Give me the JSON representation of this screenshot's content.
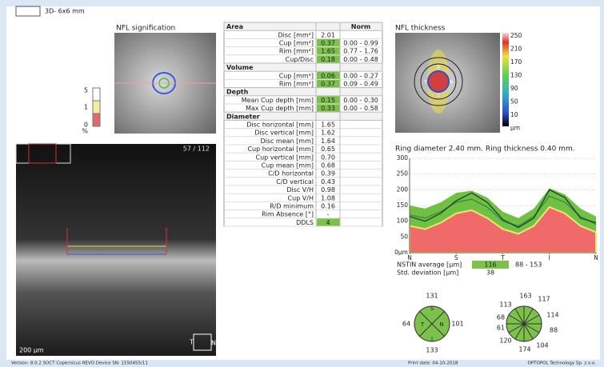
{
  "header": {
    "scan": "3D- 6x6 mm"
  },
  "fundus": {
    "title": "NFL signification",
    "scale_labels": [
      "5",
      "1",
      "0",
      "%"
    ]
  },
  "bscan": {
    "frame": "57 / 112",
    "scale": "200 µm",
    "left": "T",
    "right": "N"
  },
  "table": {
    "norm_header": "Norm",
    "sections": [
      {
        "title": "Area",
        "highlighted_rows": [
          1,
          2,
          3
        ],
        "rows": [
          [
            "Disc [mm²]",
            "2.01"
          ],
          [
            "Cup [mm²]",
            "0.37",
            "0.00 - 0.99"
          ],
          [
            "Rim [mm²]",
            "1.65",
            "0.77 - 1.76"
          ],
          [
            "Cup/Disc",
            "0.18",
            "0.00 - 0.48"
          ]
        ]
      },
      {
        "title": "Volume",
        "highlighted_rows": [
          0,
          1
        ],
        "rows": [
          [
            "Cup [mm³]",
            "0.06",
            "0.00 - 0.27"
          ],
          [
            "Rim [mm³]",
            "0.37",
            "0.09 - 0.49"
          ]
        ]
      },
      {
        "title": "Depth",
        "highlighted_rows": [
          0,
          1
        ],
        "rows": [
          [
            "Mean Cup depth [mm]",
            "0.15",
            "0.00 - 0.30"
          ],
          [
            "Max Cup depth [mm]",
            "0.33",
            "0.00 - 0.58"
          ]
        ]
      },
      {
        "title": "Diameter",
        "highlighted_rows": [
          12
        ],
        "rows": [
          [
            "Disc horizontal [mm]",
            "1.65"
          ],
          [
            "Disc vertical [mm]",
            "1.62"
          ],
          [
            "Disc mean [mm]",
            "1.64"
          ],
          [
            "Cup horizontal [mm]",
            "0.65"
          ],
          [
            "Cup vertical [mm]",
            "0.70"
          ],
          [
            "Cup mean [mm]",
            "0.68"
          ],
          [
            "C/D horizontal",
            "0.39"
          ],
          [
            "C/D vertical",
            "0.43"
          ],
          [
            "Disc V/H",
            "0.98"
          ],
          [
            "Cup V/H",
            "1.08"
          ],
          [
            "R/D minimum",
            "0.16"
          ],
          [
            "Rim Absence [°]",
            "-"
          ],
          [
            "DDLS",
            "4"
          ]
        ]
      }
    ]
  },
  "thickness_map": {
    "title": "NFL thickness",
    "scale_labels": [
      "250",
      "210",
      "170",
      "130",
      "90",
      "50",
      "10",
      "µm"
    ],
    "sector_labels": [
      "S",
      "T",
      "N",
      "I"
    ]
  },
  "chart_data": {
    "type": "line",
    "title": "Ring diameter 2.40 mm. Ring thickness 0.40 mm.",
    "x": [
      0,
      1,
      2,
      3,
      4,
      5,
      6,
      7,
      8,
      9,
      10,
      11,
      12
    ],
    "xlim": [
      0,
      12
    ],
    "xticks": [
      {
        "value": 0,
        "label": "N"
      },
      {
        "value": 3,
        "label": "S"
      },
      {
        "value": 6,
        "label": "T"
      },
      {
        "value": 9,
        "label": "I"
      },
      {
        "value": 12,
        "label": "N"
      }
    ],
    "ylim": [
      0,
      300
    ],
    "yticks": [
      {
        "value": 0,
        "label": "0µm"
      },
      50,
      100,
      150,
      200,
      250,
      300
    ],
    "grid": true,
    "series": [
      {
        "color": "#6fc043",
        "fill": true,
        "values": [
          150,
          140,
          160,
          190,
          197,
          175,
          130,
          110,
          140,
          205,
          185,
          140,
          115
        ]
      },
      {
        "color": "#f06a6a",
        "fill": true,
        "values": [
          85,
          75,
          95,
          125,
          135,
          110,
          75,
          60,
          85,
          145,
          125,
          85,
          65
        ]
      },
      {
        "color": "#3f8a4a",
        "fill": false,
        "values": [
          120,
          110,
          130,
          160,
          170,
          145,
          100,
          85,
          115,
          180,
          160,
          115,
          90
        ]
      },
      {
        "color": "#1d4a2b",
        "fill": false,
        "values": [
          115,
          100,
          125,
          165,
          190,
          160,
          105,
          80,
          110,
          200,
          175,
          110,
          95
        ]
      }
    ]
  },
  "stats": {
    "highlight_color": "#7cc24a",
    "rows": [
      [
        "NSTIN average [µm]",
        "116",
        "88 - 153"
      ],
      [
        "Std. deviation [µm]",
        "38"
      ]
    ]
  },
  "quadrants": {
    "labels": [
      "S",
      "T",
      "N",
      "I"
    ],
    "values": [
      "131",
      "64",
      "101",
      "133"
    ]
  },
  "clock": {
    "values": [
      "163",
      "117",
      "114",
      "88",
      "104",
      "174",
      "120",
      "61",
      "68",
      "113"
    ]
  },
  "footer": {
    "left": "Version: 8.0.2   SOCT Copernicus REVO   Device SN: 1550455/11",
    "middle": "Print date: 04-10-2018",
    "right": "OPTOPOL Technology Sp. z o.o."
  }
}
